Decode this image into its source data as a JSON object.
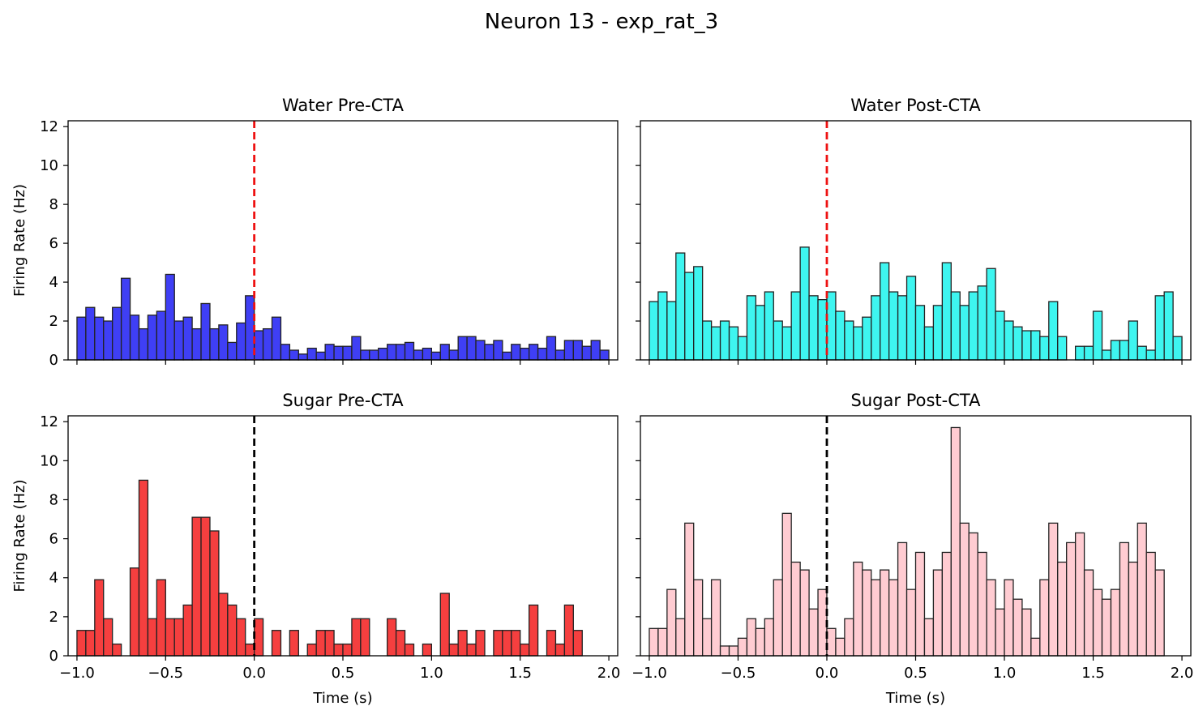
{
  "figure": {
    "title": "Neuron 13 - exp_rat_3"
  },
  "chart_data": [
    {
      "type": "bar",
      "title": "Water Pre-CTA",
      "xlabel": "",
      "ylabel": "Firing Rate (Hz)",
      "xlim": [
        -1.05,
        2.05
      ],
      "ylim": [
        0,
        12.3
      ],
      "bin_start": -1.0,
      "bin_width": 0.05,
      "fill_color": "#3f3ff5",
      "edge_color": "#222222",
      "marker_x": 0,
      "marker_color": "#ee1111",
      "values": [
        2.2,
        2.7,
        2.2,
        2.0,
        2.7,
        4.2,
        2.3,
        1.6,
        2.3,
        2.5,
        4.4,
        2.0,
        2.2,
        1.6,
        2.9,
        1.6,
        1.8,
        0.9,
        1.9,
        3.3,
        1.5,
        1.6,
        2.2,
        0.8,
        0.5,
        0.3,
        0.6,
        0.4,
        0.8,
        0.7,
        0.7,
        1.2,
        0.5,
        0.5,
        0.6,
        0.8,
        0.8,
        0.9,
        0.5,
        0.6,
        0.4,
        0.8,
        0.5,
        1.2,
        1.2,
        1.0,
        0.8,
        1.0,
        0.4,
        0.8,
        0.6,
        0.8,
        0.6,
        1.2,
        0.5,
        1.0,
        1.0,
        0.7,
        1.0,
        0.5
      ],
      "xticks": [
        "−1.0",
        "−0.5",
        "0.0",
        "0.5",
        "1.0",
        "1.5",
        "2.0"
      ],
      "yticks": [
        "0",
        "2",
        "4",
        "6",
        "8",
        "10",
        "12"
      ],
      "show_xticklabels": false,
      "show_yticklabels": true
    },
    {
      "type": "bar",
      "title": "Water Post-CTA",
      "xlabel": "",
      "ylabel": "",
      "xlim": [
        -1.05,
        2.05
      ],
      "ylim": [
        0,
        12.3
      ],
      "bin_start": -1.0,
      "bin_width": 0.05,
      "fill_color": "#3ef5f0",
      "edge_color": "#222222",
      "marker_x": 0,
      "marker_color": "#ee1111",
      "values": [
        3.0,
        3.5,
        3.0,
        5.5,
        4.5,
        4.8,
        2.0,
        1.7,
        2.0,
        1.7,
        1.2,
        3.3,
        2.8,
        3.5,
        2.0,
        1.7,
        3.5,
        5.8,
        3.3,
        3.1,
        3.5,
        2.5,
        2.0,
        1.7,
        2.2,
        3.3,
        5.0,
        3.5,
        3.3,
        4.3,
        2.8,
        1.7,
        2.8,
        5.0,
        3.5,
        2.8,
        3.5,
        3.8,
        4.7,
        2.5,
        2.0,
        1.7,
        1.5,
        1.5,
        1.2,
        3.0,
        1.2,
        0.0,
        0.7,
        0.7,
        2.5,
        0.5,
        1.0,
        1.0,
        2.0,
        0.7,
        0.5,
        3.3,
        3.5,
        1.2
      ],
      "xticks": [
        "−1.0",
        "−0.5",
        "0.0",
        "0.5",
        "1.0",
        "1.5",
        "2.0"
      ],
      "yticks": [
        "0",
        "2",
        "4",
        "6",
        "8",
        "10",
        "12"
      ],
      "show_xticklabels": false,
      "show_yticklabels": false
    },
    {
      "type": "bar",
      "title": "Sugar Pre-CTA",
      "xlabel": "Time (s)",
      "ylabel": "Firing Rate (Hz)",
      "xlim": [
        -1.05,
        2.05
      ],
      "ylim": [
        0,
        12.3
      ],
      "bin_start": -1.0,
      "bin_width": 0.05,
      "fill_color": "#f53f3f",
      "edge_color": "#222222",
      "marker_x": 0,
      "marker_color": "#000000",
      "values": [
        1.3,
        1.3,
        3.9,
        1.9,
        0.6,
        0.0,
        4.5,
        9.0,
        1.9,
        3.9,
        1.9,
        1.9,
        2.6,
        7.1,
        7.1,
        6.4,
        3.2,
        2.6,
        1.9,
        0.6,
        1.9,
        0.0,
        1.3,
        0.0,
        1.3,
        0.0,
        0.6,
        1.3,
        1.3,
        0.6,
        0.6,
        1.9,
        1.9,
        0.0,
        0.0,
        1.9,
        1.3,
        0.6,
        0.0,
        0.6,
        0.0,
        3.2,
        0.6,
        1.3,
        0.6,
        1.3,
        0.0,
        1.3,
        1.3,
        1.3,
        0.6,
        2.6,
        0.0,
        1.3,
        0.6,
        2.6,
        1.3,
        0.0,
        0.0,
        0.0
      ],
      "xticks": [
        "−1.0",
        "−0.5",
        "0.0",
        "0.5",
        "1.0",
        "1.5",
        "2.0"
      ],
      "yticks": [
        "0",
        "2",
        "4",
        "6",
        "8",
        "10",
        "12"
      ],
      "show_xticklabels": true,
      "show_yticklabels": true
    },
    {
      "type": "bar",
      "title": "Sugar Post-CTA",
      "xlabel": "Time (s)",
      "ylabel": "",
      "xlim": [
        -1.05,
        2.05
      ],
      "ylim": [
        0,
        12.3
      ],
      "bin_start": -1.0,
      "bin_width": 0.05,
      "fill_color": "#ffccd2",
      "edge_color": "#222222",
      "marker_x": 0,
      "marker_color": "#000000",
      "values": [
        1.4,
        1.4,
        3.4,
        1.9,
        6.8,
        3.9,
        1.9,
        3.9,
        0.5,
        0.5,
        0.9,
        1.9,
        1.4,
        1.9,
        3.9,
        7.3,
        4.8,
        4.4,
        2.4,
        3.4,
        1.4,
        0.9,
        1.9,
        4.8,
        4.4,
        3.9,
        4.4,
        3.9,
        5.8,
        3.4,
        5.3,
        1.9,
        4.4,
        5.3,
        11.7,
        6.8,
        6.3,
        5.3,
        3.9,
        2.4,
        3.9,
        2.9,
        2.4,
        0.9,
        3.9,
        6.8,
        4.8,
        5.8,
        6.3,
        4.4,
        3.4,
        2.9,
        3.4,
        5.8,
        4.8,
        6.8,
        5.3,
        4.4,
        0.0,
        0.0
      ],
      "xticks": [
        "−1.0",
        "−0.5",
        "0.0",
        "0.5",
        "1.0",
        "1.5",
        "2.0"
      ],
      "yticks": [
        "0",
        "2",
        "4",
        "6",
        "8",
        "10",
        "12"
      ],
      "show_xticklabels": true,
      "show_yticklabels": false
    }
  ]
}
